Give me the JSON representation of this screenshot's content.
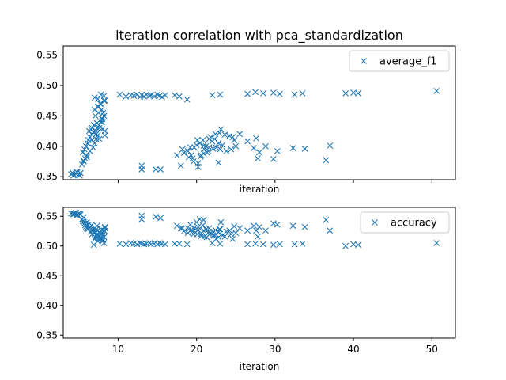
{
  "title": "iteration correlation with pca_standardization",
  "colors": {
    "series": "#1f77b4",
    "axis": "#000000",
    "legend_border": "#cccccc"
  },
  "chart_data": [
    {
      "type": "scatter",
      "marker": "x",
      "xlabel": "iteration",
      "ylabel": "",
      "xlim": [
        3,
        53
      ],
      "ylim": [
        0.345,
        0.565
      ],
      "x_ticks": [
        10,
        20,
        30,
        40,
        50
      ],
      "x_tick_labels_shown": false,
      "y_ticks": [
        0.35,
        0.4,
        0.45,
        0.5,
        0.55
      ],
      "y_tick_labels": [
        "0.35",
        "0.40",
        "0.45",
        "0.50",
        "0.55"
      ],
      "grid": false,
      "legend_position": "upper-right",
      "series": [
        {
          "name": "average_f1",
          "x": [
            4.0,
            4.2,
            4.4,
            4.6,
            4.8,
            5.0,
            5.2,
            4.3,
            4.7,
            5.1,
            5.4,
            5.6,
            5.8,
            6.0,
            5.5,
            5.7,
            5.9,
            6.1,
            6.2,
            6.4,
            6.6,
            6.3,
            6.5,
            6.7,
            5.6,
            6.0,
            6.4,
            6.8,
            7.0,
            7.2,
            7.4,
            6.9,
            7.1,
            7.3,
            7.6,
            7.8,
            8.0,
            8.2,
            8.1,
            7.9,
            7.5,
            7.7,
            8.3,
            7.0,
            7.4,
            7.8,
            8.2,
            6.6,
            7.2,
            7.6,
            8.0,
            8.3,
            7.3,
            6.9,
            7.0,
            7.4,
            7.8,
            8.2,
            7.1,
            7.5,
            7.9,
            8.3,
            7.6,
            8.0,
            10.2,
            11.0,
            11.6,
            12.0,
            12.4,
            12.8,
            13.0,
            13.3,
            13.6,
            14.0,
            14.2,
            14.6,
            15.0,
            15.3,
            15.6,
            16.0,
            17.2,
            17.8,
            18.8,
            22.0,
            23.0,
            26.5,
            27.5,
            28.5,
            29.8,
            30.6,
            32.5,
            33.5,
            39.0,
            40.0,
            40.6,
            50.6,
            13.0,
            13.0,
            14.8,
            15.4,
            17.5,
            18.0,
            18.4,
            18.9,
            19.3,
            19.7,
            20.0,
            20.4,
            20.8,
            21.2,
            21.6,
            22.0,
            22.3,
            20.2,
            20.9,
            21.5,
            22.1,
            22.8,
            19.0,
            19.6,
            20.6,
            21.8,
            18.2,
            19.5,
            20.5,
            21.3,
            22.5,
            23.3,
            23.8,
            24.4,
            22.9,
            23.6,
            24.6,
            20.2,
            19.2,
            20.9,
            21.6,
            22.4,
            23.1,
            24.2,
            25.0,
            21.0,
            20.1,
            24.8,
            25.5,
            26.5,
            27.3,
            27.6,
            28.0,
            27.8,
            28.8,
            29.8,
            30.3,
            32.3,
            33.8,
            36.5,
            37.0,
            23.0,
            22.8
          ],
          "y": [
            0.354,
            0.356,
            0.353,
            0.355,
            0.357,
            0.354,
            0.356,
            0.352,
            0.358,
            0.352,
            0.37,
            0.375,
            0.38,
            0.385,
            0.39,
            0.395,
            0.4,
            0.405,
            0.41,
            0.415,
            0.42,
            0.425,
            0.428,
            0.43,
            0.376,
            0.382,
            0.392,
            0.398,
            0.405,
            0.412,
            0.418,
            0.422,
            0.426,
            0.43,
            0.435,
            0.44,
            0.445,
            0.45,
            0.455,
            0.46,
            0.465,
            0.47,
            0.475,
            0.48,
            0.478,
            0.485,
            0.483,
            0.41,
            0.42,
            0.43,
            0.44,
            0.418,
            0.438,
            0.435,
            0.46,
            0.465,
            0.47,
            0.475,
            0.45,
            0.455,
            0.445,
            0.425,
            0.412,
            0.428,
            0.485,
            0.482,
            0.484,
            0.483,
            0.485,
            0.481,
            0.484,
            0.482,
            0.485,
            0.483,
            0.484,
            0.482,
            0.485,
            0.483,
            0.481,
            0.484,
            0.484,
            0.482,
            0.477,
            0.484,
            0.485,
            0.486,
            0.489,
            0.487,
            0.488,
            0.486,
            0.485,
            0.487,
            0.487,
            0.488,
            0.487,
            0.491,
            0.362,
            0.368,
            0.362,
            0.362,
            0.385,
            0.368,
            0.389,
            0.392,
            0.385,
            0.398,
            0.402,
            0.405,
            0.41,
            0.4,
            0.398,
            0.408,
            0.412,
            0.372,
            0.388,
            0.392,
            0.396,
            0.405,
            0.382,
            0.375,
            0.385,
            0.415,
            0.395,
            0.38,
            0.383,
            0.39,
            0.398,
            0.402,
            0.392,
            0.395,
            0.422,
            0.419,
            0.415,
            0.366,
            0.398,
            0.401,
            0.412,
            0.42,
            0.428,
            0.417,
            0.4,
            0.395,
            0.41,
            0.41,
            0.42,
            0.408,
            0.397,
            0.413,
            0.39,
            0.38,
            0.4,
            0.379,
            0.392,
            0.397,
            0.396,
            0.377,
            0.401,
            0.395,
            0.373
          ]
        }
      ]
    },
    {
      "type": "scatter",
      "marker": "x",
      "xlabel": "iteration",
      "ylabel": "",
      "xlim": [
        3,
        53
      ],
      "ylim": [
        0.345,
        0.565
      ],
      "x_ticks": [
        10,
        20,
        30,
        40,
        50
      ],
      "x_tick_labels": [
        "10",
        "20",
        "30",
        "40",
        "50"
      ],
      "y_ticks": [
        0.35,
        0.4,
        0.45,
        0.5,
        0.55
      ],
      "y_tick_labels": [
        "0.35",
        "0.40",
        "0.45",
        "0.50",
        "0.55"
      ],
      "grid": false,
      "legend_position": "upper-right",
      "series": [
        {
          "name": "accuracy",
          "x": [
            4.0,
            4.2,
            4.4,
            4.6,
            4.8,
            5.0,
            5.2,
            4.3,
            4.7,
            5.1,
            5.4,
            5.6,
            5.8,
            6.0,
            5.5,
            5.7,
            5.9,
            6.1,
            6.2,
            6.4,
            6.6,
            6.3,
            6.5,
            6.7,
            5.6,
            6.0,
            6.4,
            6.8,
            7.0,
            7.2,
            7.4,
            6.9,
            7.1,
            7.3,
            7.6,
            7.8,
            8.0,
            8.2,
            8.1,
            7.9,
            7.5,
            7.7,
            8.3,
            7.0,
            7.4,
            7.8,
            8.2,
            6.6,
            7.2,
            7.6,
            8.0,
            8.3,
            7.3,
            6.9,
            7.0,
            7.4,
            7.8,
            8.2,
            7.1,
            7.5,
            7.9,
            8.3,
            7.6,
            8.0,
            10.2,
            11.0,
            11.6,
            12.0,
            12.4,
            12.8,
            13.0,
            13.3,
            13.6,
            14.0,
            14.2,
            14.6,
            15.0,
            15.3,
            15.6,
            16.0,
            17.2,
            17.8,
            18.8,
            22.0,
            23.0,
            26.5,
            27.5,
            28.5,
            29.8,
            30.6,
            32.5,
            33.5,
            39.0,
            40.0,
            40.6,
            50.6,
            13.0,
            13.0,
            14.8,
            15.4,
            17.5,
            18.0,
            18.4,
            18.9,
            19.3,
            19.7,
            20.0,
            20.4,
            20.8,
            21.2,
            21.6,
            22.0,
            22.3,
            20.2,
            20.9,
            21.5,
            22.1,
            22.8,
            19.0,
            19.6,
            20.6,
            21.8,
            18.2,
            19.5,
            20.5,
            21.3,
            22.5,
            23.3,
            23.8,
            24.4,
            22.9,
            23.6,
            24.6,
            20.2,
            19.2,
            20.9,
            21.6,
            22.4,
            23.1,
            24.2,
            25.0,
            21.0,
            20.1,
            24.8,
            25.5,
            26.5,
            27.3,
            27.6,
            28.0,
            27.8,
            28.8,
            29.8,
            30.3,
            32.3,
            33.8,
            36.5,
            37.0,
            23.0,
            22.8
          ],
          "y": [
            0.555,
            0.553,
            0.554,
            0.556,
            0.552,
            0.555,
            0.553,
            0.554,
            0.552,
            0.554,
            0.545,
            0.54,
            0.535,
            0.53,
            0.542,
            0.538,
            0.533,
            0.528,
            0.536,
            0.532,
            0.526,
            0.53,
            0.524,
            0.52,
            0.548,
            0.54,
            0.532,
            0.526,
            0.522,
            0.518,
            0.514,
            0.528,
            0.524,
            0.52,
            0.516,
            0.512,
            0.508,
            0.505,
            0.51,
            0.514,
            0.519,
            0.522,
            0.525,
            0.53,
            0.526,
            0.52,
            0.515,
            0.535,
            0.528,
            0.523,
            0.518,
            0.53,
            0.534,
            0.502,
            0.512,
            0.508,
            0.52,
            0.526,
            0.515,
            0.51,
            0.528,
            0.532,
            0.512,
            0.522,
            0.504,
            0.503,
            0.505,
            0.504,
            0.503,
            0.505,
            0.504,
            0.503,
            0.504,
            0.505,
            0.503,
            0.504,
            0.503,
            0.505,
            0.504,
            0.503,
            0.504,
            0.504,
            0.503,
            0.505,
            0.504,
            0.503,
            0.504,
            0.503,
            0.502,
            0.503,
            0.503,
            0.504,
            0.5,
            0.503,
            0.502,
            0.505,
            0.551,
            0.545,
            0.549,
            0.547,
            0.534,
            0.53,
            0.525,
            0.522,
            0.527,
            0.53,
            0.54,
            0.545,
            0.535,
            0.528,
            0.524,
            0.52,
            0.518,
            0.532,
            0.526,
            0.522,
            0.518,
            0.515,
            0.528,
            0.52,
            0.517,
            0.522,
            0.53,
            0.525,
            0.52,
            0.515,
            0.512,
            0.518,
            0.524,
            0.52,
            0.528,
            0.516,
            0.512,
            0.527,
            0.536,
            0.544,
            0.53,
            0.527,
            0.54,
            0.526,
            0.522,
            0.516,
            0.52,
            0.533,
            0.53,
            0.526,
            0.534,
            0.526,
            0.532,
            0.516,
            0.526,
            0.538,
            0.536,
            0.534,
            0.532,
            0.544,
            0.526,
            0.528,
            0.523
          ]
        }
      ]
    }
  ]
}
